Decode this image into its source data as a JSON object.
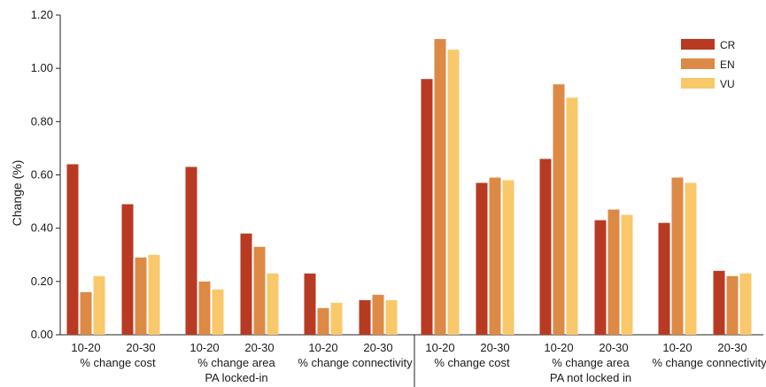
{
  "chart_data": {
    "type": "bar",
    "ylabel": "Change (%)",
    "ylim": [
      0,
      1.2
    ],
    "yticks": [
      "0.00",
      "0.20",
      "0.40",
      "0.60",
      "0.80",
      "1.00",
      "1.20"
    ],
    "grid": false,
    "legend_position": "top-right",
    "series": [
      {
        "name": "CR",
        "color": "#b83a23"
      },
      {
        "name": "EN",
        "color": "#dc8a45"
      },
      {
        "name": "VU",
        "color": "#f8c86b"
      }
    ],
    "groups": [
      {
        "label": "PA locked-in",
        "metrics": [
          {
            "label": "% change cost",
            "ranges": [
              {
                "label": "10-20",
                "values": [
                  0.64,
                  0.16,
                  0.22
                ]
              },
              {
                "label": "20-30",
                "values": [
                  0.49,
                  0.29,
                  0.3
                ]
              }
            ]
          },
          {
            "label": "% change area",
            "ranges": [
              {
                "label": "10-20",
                "values": [
                  0.63,
                  0.2,
                  0.17
                ]
              },
              {
                "label": "20-30",
                "values": [
                  0.38,
                  0.33,
                  0.23
                ]
              }
            ]
          },
          {
            "label": "% change connectivity",
            "ranges": [
              {
                "label": "10-20",
                "values": [
                  0.23,
                  0.1,
                  0.12
                ]
              },
              {
                "label": "20-30",
                "values": [
                  0.13,
                  0.15,
                  0.13
                ]
              }
            ]
          }
        ]
      },
      {
        "label": "PA not locked in",
        "metrics": [
          {
            "label": "% change cost",
            "ranges": [
              {
                "label": "10-20",
                "values": [
                  0.96,
                  1.11,
                  1.07
                ]
              },
              {
                "label": "20-30",
                "values": [
                  0.57,
                  0.59,
                  0.58
                ]
              }
            ]
          },
          {
            "label": "% change area",
            "ranges": [
              {
                "label": "10-20",
                "values": [
                  0.66,
                  0.94,
                  0.89
                ]
              },
              {
                "label": "20-30",
                "values": [
                  0.43,
                  0.47,
                  0.45
                ]
              }
            ]
          },
          {
            "label": "% change connectivity",
            "ranges": [
              {
                "label": "10-20",
                "values": [
                  0.42,
                  0.59,
                  0.57
                ]
              },
              {
                "label": "20-30",
                "values": [
                  0.24,
                  0.22,
                  0.23
                ]
              }
            ]
          }
        ]
      }
    ]
  }
}
